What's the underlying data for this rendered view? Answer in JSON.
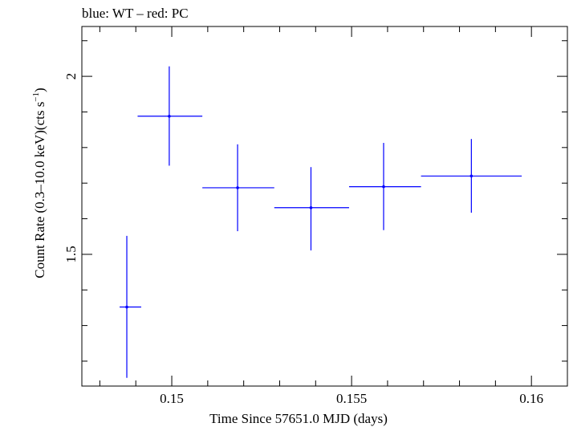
{
  "chart_data": {
    "type": "scatter",
    "title": "blue: WT – red: PC",
    "xlabel": "Time Since 57651.0 MJD (days)",
    "ylabel_parts": {
      "main": "Count Rate (0.3–10.0 keV)(cts s",
      "sup": "−1",
      "close": ")"
    },
    "xlim": [
      0.1475,
      0.161
    ],
    "ylim": [
      1.13,
      2.14
    ],
    "x_ticks": [
      {
        "value": 0.15,
        "label": "0.15"
      },
      {
        "value": 0.155,
        "label": "0.155"
      },
      {
        "value": 0.16,
        "label": "0.16"
      }
    ],
    "x_minor_step": 0.001,
    "y_ticks": [
      {
        "value": 1.5,
        "label": "1.5"
      },
      {
        "value": 2.0,
        "label": "2"
      }
    ],
    "y_minor_step": 0.1,
    "grid": false,
    "series": [
      {
        "mode": "WT",
        "color": "#0000ff",
        "points": [
          {
            "x": 0.14875,
            "xerr": [
              0.14855,
              0.14915
            ],
            "y": 1.352,
            "yerr": [
              1.153,
              1.552
            ]
          },
          {
            "x": 0.14993,
            "xerr": [
              0.14905,
              0.15085
            ],
            "y": 1.888,
            "yerr": [
              1.749,
              2.028
            ]
          },
          {
            "x": 0.15183,
            "xerr": [
              0.15085,
              0.15285
            ],
            "y": 1.687,
            "yerr": [
              1.565,
              1.809
            ]
          },
          {
            "x": 0.15387,
            "xerr": [
              0.15285,
              0.15493
            ],
            "y": 1.631,
            "yerr": [
              1.511,
              1.745
            ]
          },
          {
            "x": 0.15589,
            "xerr": [
              0.15493,
              0.15693
            ],
            "y": 1.69,
            "yerr": [
              1.568,
              1.813
            ]
          },
          {
            "x": 0.15833,
            "xerr": [
              0.15693,
              0.15973
            ],
            "y": 1.72,
            "yerr": [
              1.617,
              1.824
            ]
          }
        ]
      }
    ]
  }
}
